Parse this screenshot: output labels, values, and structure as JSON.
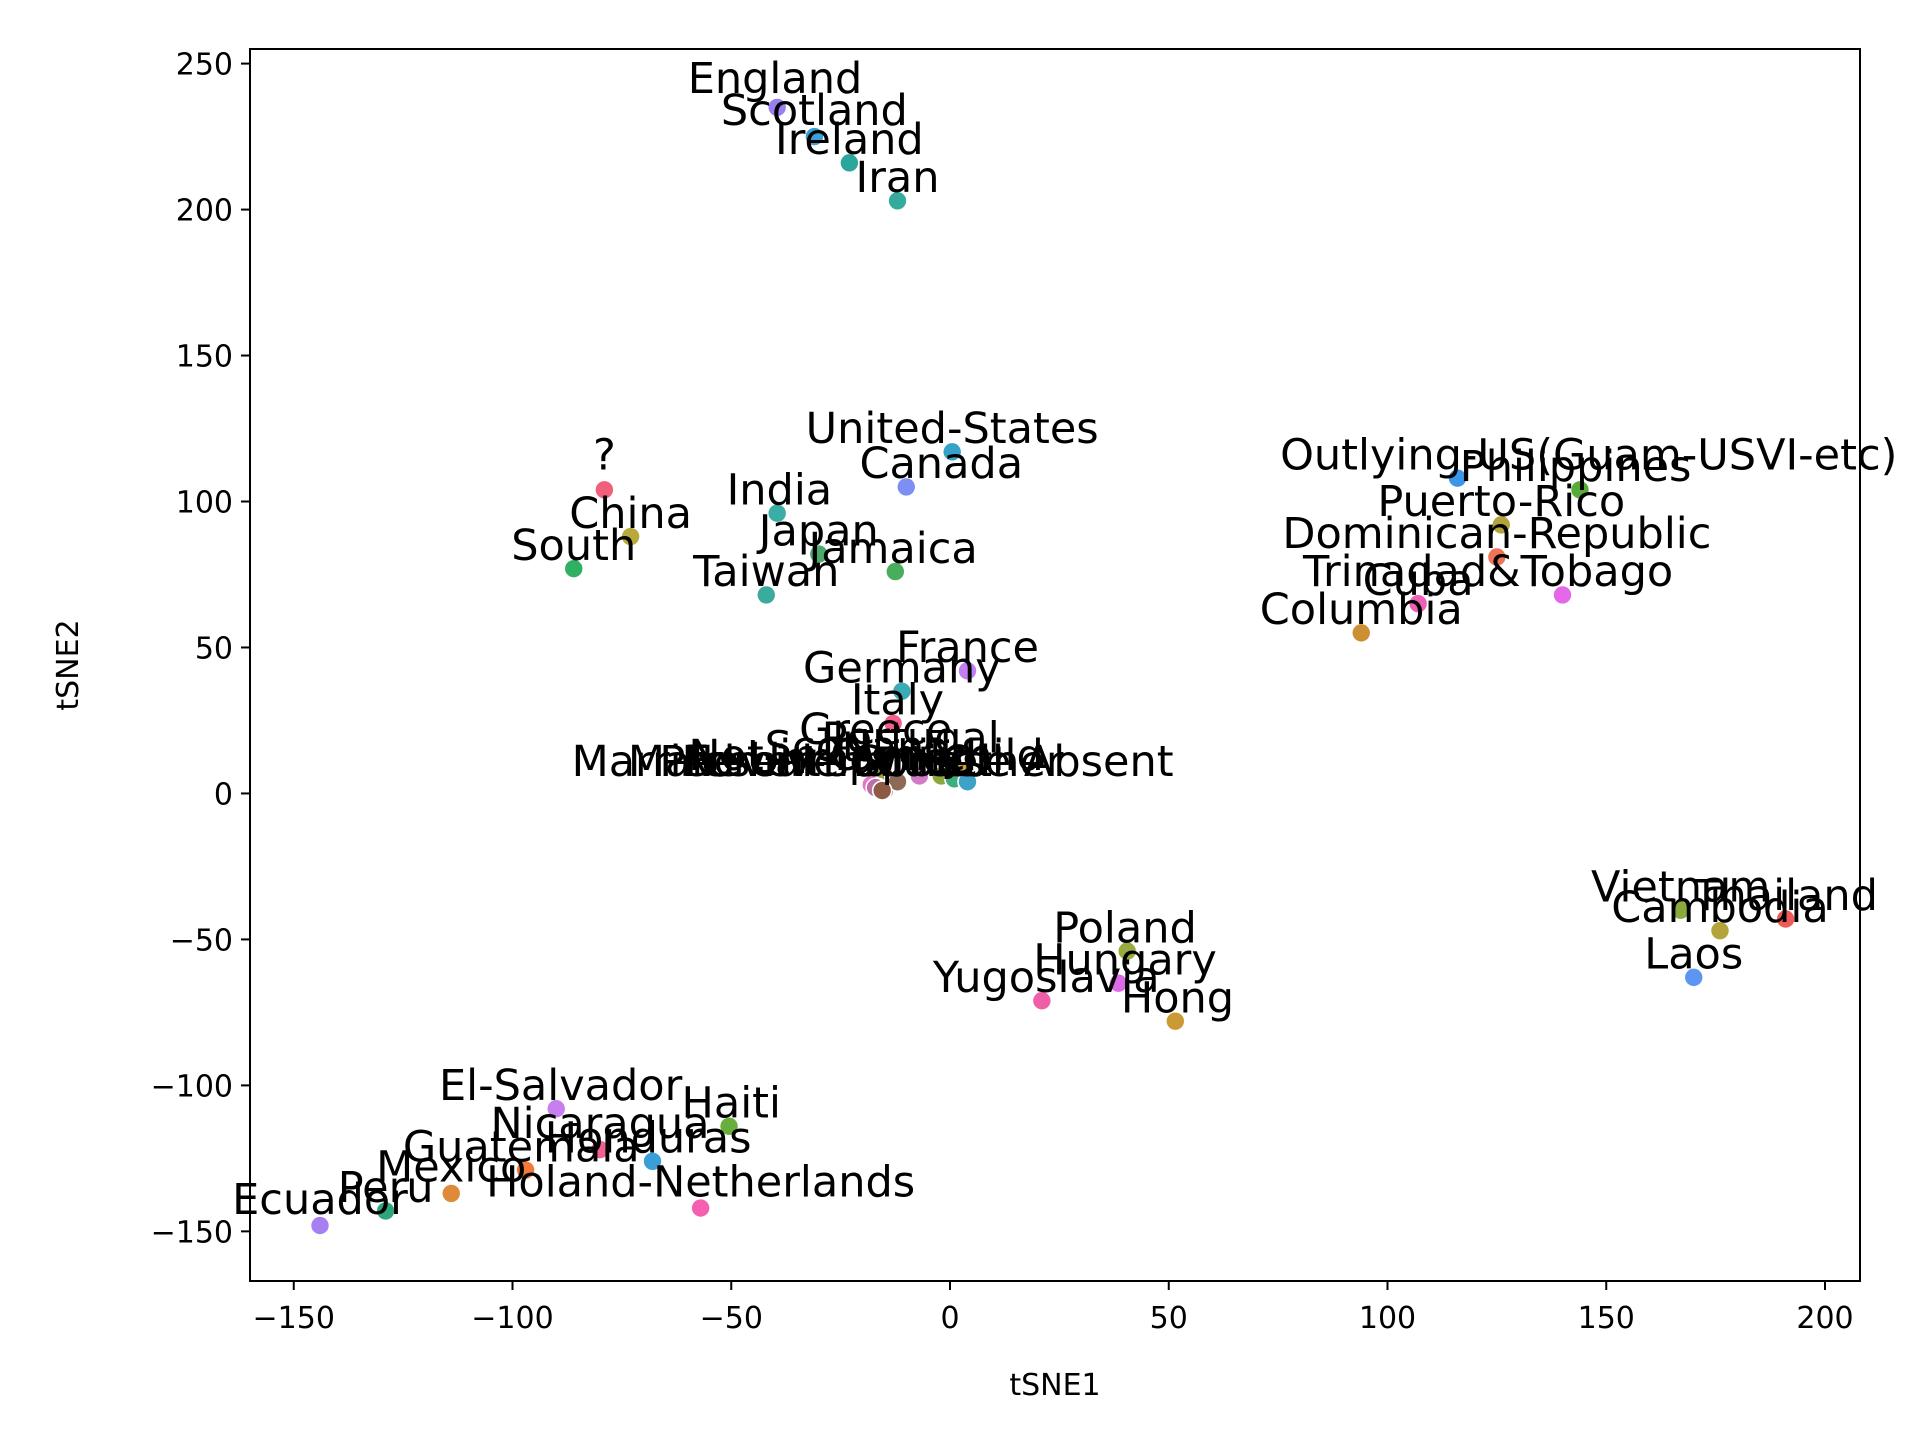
{
  "chart_data": {
    "type": "scatter",
    "xlabel": "tSNE1",
    "ylabel": "tSNE2",
    "xlim": [
      -160,
      208
    ],
    "ylim": [
      -167,
      255
    ],
    "xticks": [
      -150,
      -100,
      -50,
      0,
      50,
      100,
      150,
      200
    ],
    "yticks": [
      -150,
      -100,
      -50,
      0,
      50,
      100,
      150,
      200,
      250
    ],
    "xtick_labels": [
      "−150",
      "−100",
      "−50",
      "0",
      "50",
      "100",
      "150",
      "200"
    ],
    "ytick_labels": [
      "−150",
      "−100",
      "−50",
      "0",
      "50",
      "100",
      "150",
      "200",
      "250"
    ],
    "grid": false,
    "legend": "none",
    "points": [
      {
        "label": "England",
        "x": -39.5,
        "y": 235,
        "color": "#9b7ff0"
      },
      {
        "label": "Scotland",
        "x": -31,
        "y": 225,
        "color": "#3aa0d6"
      },
      {
        "label": "Ireland",
        "x": -23,
        "y": 216,
        "color": "#2aa69b"
      },
      {
        "label": "Iran",
        "x": -12,
        "y": 203,
        "color": "#35ab9e"
      },
      {
        "label": "United-States",
        "x": 0.5,
        "y": 117,
        "color": "#35a3c8"
      },
      {
        "label": "Canada",
        "x": -10,
        "y": 105,
        "color": "#7d8ef5"
      },
      {
        "label": "?",
        "x": -79,
        "y": 104,
        "color": "#f0607a"
      },
      {
        "label": "India",
        "x": -39.5,
        "y": 96,
        "color": "#3aaea6"
      },
      {
        "label": "China",
        "x": -73,
        "y": 88,
        "color": "#b9a83a"
      },
      {
        "label": "Japan",
        "x": -30,
        "y": 82,
        "color": "#4cab6c"
      },
      {
        "label": "South",
        "x": -86,
        "y": 77,
        "color": "#2fb062"
      },
      {
        "label": "Jamaica",
        "x": -12.5,
        "y": 76,
        "color": "#48ae5c"
      },
      {
        "label": "Taiwan",
        "x": -42,
        "y": 68,
        "color": "#3aab9c"
      },
      {
        "label": "Outlying-US(Guam-USVI-etc)",
        "x": 116,
        "y": 108,
        "color": "#3d95e8"
      },
      {
        "label": "Philippines",
        "x": 144,
        "y": 104,
        "color": "#57ab3b"
      },
      {
        "label": "Puerto-Rico",
        "x": 126,
        "y": 92,
        "color": "#b3a33c"
      },
      {
        "label": "Dominican-Republic",
        "x": 125,
        "y": 81,
        "color": "#ef7357"
      },
      {
        "label": "Trinadad&Tobago",
        "x": 140,
        "y": 68,
        "color": "#e468e8"
      },
      {
        "label": "Cuba",
        "x": 107,
        "y": 65,
        "color": "#ee60b8"
      },
      {
        "label": "Columbia",
        "x": 94,
        "y": 55,
        "color": "#cc8f34"
      },
      {
        "label": "France",
        "x": 4,
        "y": 42,
        "color": "#c27ef0"
      },
      {
        "label": "Germany",
        "x": -11,
        "y": 35,
        "color": "#3aabb3"
      },
      {
        "label": "Italy",
        "x": -13,
        "y": 24,
        "color": "#f55f8a"
      },
      {
        "label": "Greece",
        "x": -16,
        "y": 9,
        "color": "#df7ae0"
      },
      {
        "label": "Portugal",
        "x": -15,
        "y": 6,
        "color": "#d97d4c"
      },
      {
        "label": "Scotland",
        "x": -17,
        "y": 5,
        "color": "#9d9a3e"
      },
      {
        "label": "Married-civ-spouse",
        "x": -18,
        "y": 3,
        "color": "#e676c8"
      },
      {
        "label": "Not-in-family",
        "x": -16.5,
        "y": 2,
        "color": "#c98aa0"
      },
      {
        "label": "Never-married",
        "x": -15,
        "y": 1,
        "color": "#a07060"
      },
      {
        "label": "Own-child",
        "x": 3,
        "y": 7,
        "color": "#cf9e3b"
      },
      {
        "label": "Unmarried",
        "x": -2,
        "y": 6,
        "color": "#8ea73c"
      },
      {
        "label": "Spouse",
        "x": 1,
        "y": 5,
        "color": "#3caf7d"
      },
      {
        "label": "Male",
        "x": -7,
        "y": 6,
        "color": "#d27bc5"
      },
      {
        "label": "Absent",
        "x": 4,
        "y": 4,
        "color": "#3da2c6"
      },
      {
        "label": "Female",
        "x": -12,
        "y": 4,
        "color": "#8c6a57"
      },
      {
        "label": "Present",
        "x": -17,
        "y": 2,
        "color": "#bf6fa8"
      },
      {
        "label": "Other",
        "x": -15.5,
        "y": 1,
        "color": "#8d5a44"
      },
      {
        "label": "Vietnam",
        "x": 167,
        "y": -40,
        "color": "#8aa83b"
      },
      {
        "label": "Thailand",
        "x": 191,
        "y": -43,
        "color": "#ef5a5a"
      },
      {
        "label": "Cambodia",
        "x": 176,
        "y": -47,
        "color": "#b3a33c"
      },
      {
        "label": "Laos",
        "x": 170,
        "y": -63,
        "color": "#5c96f2"
      },
      {
        "label": "Poland",
        "x": 40.5,
        "y": -54,
        "color": "#98ab3c"
      },
      {
        "label": "Hungary",
        "x": 38.5,
        "y": -65,
        "color": "#dc6ae6"
      },
      {
        "label": "Yugoslavia",
        "x": 21,
        "y": -71,
        "color": "#ef5fa8"
      },
      {
        "label": "Hong",
        "x": 51.5,
        "y": -78,
        "color": "#cc9a34"
      },
      {
        "label": "El-Salvador",
        "x": -90,
        "y": -108,
        "color": "#c77ff0"
      },
      {
        "label": "Haiti",
        "x": -50.5,
        "y": -114,
        "color": "#69ad3c"
      },
      {
        "label": "Nicaragua",
        "x": -80,
        "y": -122,
        "color": "#f06090"
      },
      {
        "label": "Honduras",
        "x": -68,
        "y": -126,
        "color": "#3a9fd6"
      },
      {
        "label": "Guatemala",
        "x": -97,
        "y": -129,
        "color": "#ef7a3a"
      },
      {
        "label": "Mexico",
        "x": -114,
        "y": -137,
        "color": "#df8a38"
      },
      {
        "label": "Holand-Netherlands",
        "x": -57,
        "y": -142,
        "color": "#f55fb0"
      },
      {
        "label": "Peru",
        "x": -129,
        "y": -143,
        "color": "#2fa57a"
      },
      {
        "label": "Ecuador",
        "x": -144,
        "y": -148,
        "color": "#a77ff0"
      }
    ],
    "annotations": [
      {
        "text": "England",
        "x": -40,
        "y": 240
      },
      {
        "text": "Scotland",
        "x": -31,
        "y": 229
      },
      {
        "text": "Ireland",
        "x": -23,
        "y": 219
      },
      {
        "text": "Iran",
        "x": -12,
        "y": 206
      },
      {
        "text": "United-States",
        "x": 0.5,
        "y": 120
      },
      {
        "text": "Canada",
        "x": -2,
        "y": 108
      },
      {
        "text": "?",
        "x": -79,
        "y": 111
      },
      {
        "text": "India",
        "x": -39,
        "y": 99
      },
      {
        "text": "China",
        "x": -73,
        "y": 91
      },
      {
        "text": "Japan",
        "x": -30,
        "y": 85
      },
      {
        "text": "South",
        "x": -86,
        "y": 80
      },
      {
        "text": "Jamaica",
        "x": -13,
        "y": 79
      },
      {
        "text": "Taiwan",
        "x": -42,
        "y": 71
      },
      {
        "text": "Outlying-US(Guam-USVI-etc)",
        "x": 146,
        "y": 111
      },
      {
        "text": "Philippines",
        "x": 143,
        "y": 107
      },
      {
        "text": "Puerto-Rico",
        "x": 126,
        "y": 95
      },
      {
        "text": "Dominican-Republic",
        "x": 125,
        "y": 84
      },
      {
        "text": "Trinadad&Tobago",
        "x": 123,
        "y": 71
      },
      {
        "text": "Cuba",
        "x": 107,
        "y": 68
      },
      {
        "text": "Columbia",
        "x": 94,
        "y": 58
      },
      {
        "text": "France",
        "x": 4,
        "y": 45
      },
      {
        "text": "Germany",
        "x": -11,
        "y": 38
      },
      {
        "text": "Italy",
        "x": -12,
        "y": 27
      },
      {
        "text": "Greece",
        "x": -17,
        "y": 17
      },
      {
        "text": "Portugal",
        "x": -9,
        "y": 14
      },
      {
        "text": "Scotland",
        "x": -21,
        "y": 11
      },
      {
        "text": "Married-civ-spouse",
        "x": -40,
        "y": 6
      },
      {
        "text": "Not-in-family",
        "x": -28,
        "y": 8
      },
      {
        "text": "Never-married",
        "x": -26,
        "y": 6
      },
      {
        "text": "Own-child",
        "x": -3,
        "y": 8
      },
      {
        "text": "Unmarried",
        "x": -20,
        "y": 7
      },
      {
        "text": "Spouse",
        "x": -4,
        "y": 6
      },
      {
        "text": "Male",
        "x": -62,
        "y": 6
      },
      {
        "text": "Absent",
        "x": 34,
        "y": 6
      },
      {
        "text": "Female",
        "x": -43,
        "y": 6
      },
      {
        "text": "Present",
        "x": -48,
        "y": 6
      },
      {
        "text": "Other",
        "x": 12,
        "y": 6
      },
      {
        "text": "Vietnam",
        "x": 167,
        "y": -37
      },
      {
        "text": "Thailand",
        "x": 191,
        "y": -40
      },
      {
        "text": "Cambodia",
        "x": 176,
        "y": -44
      },
      {
        "text": "Laos",
        "x": 170,
        "y": -60
      },
      {
        "text": "Poland",
        "x": 40,
        "y": -51
      },
      {
        "text": "Hungary",
        "x": 40,
        "y": -62
      },
      {
        "text": "Yugoslavia",
        "x": 22,
        "y": -68
      },
      {
        "text": "Hong",
        "x": 52,
        "y": -75
      },
      {
        "text": "El-Salvador",
        "x": -89,
        "y": -105
      },
      {
        "text": "Haiti",
        "x": -50,
        "y": -111
      },
      {
        "text": "Nicaragua",
        "x": -80,
        "y": -118
      },
      {
        "text": "Honduras",
        "x": -69,
        "y": -123
      },
      {
        "text": "Guatemala",
        "x": -98,
        "y": -126
      },
      {
        "text": "Mexico",
        "x": -114,
        "y": -133
      },
      {
        "text": "Holand-Netherlands",
        "x": -57,
        "y": -138
      },
      {
        "text": "Peru",
        "x": -129,
        "y": -140
      },
      {
        "text": "Ecuador",
        "x": -144,
        "y": -144
      }
    ]
  }
}
